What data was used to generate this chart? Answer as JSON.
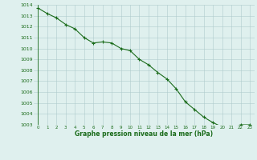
{
  "x": [
    0,
    1,
    2,
    3,
    4,
    5,
    6,
    7,
    8,
    9,
    10,
    11,
    12,
    13,
    14,
    15,
    16,
    17,
    18,
    19,
    20,
    21,
    22,
    23
  ],
  "y": [
    1013.7,
    1013.2,
    1012.8,
    1012.2,
    1011.8,
    1011.0,
    1010.5,
    1010.6,
    1010.5,
    1010.0,
    1009.8,
    1009.0,
    1008.5,
    1007.8,
    1007.2,
    1006.3,
    1005.1,
    1004.4,
    1003.7,
    1003.2,
    1002.8,
    1002.8,
    1003.0,
    1003.0
  ],
  "ylim": [
    1003,
    1014
  ],
  "xlim": [
    -0.5,
    23.5
  ],
  "yticks": [
    1003,
    1004,
    1005,
    1006,
    1007,
    1008,
    1009,
    1010,
    1011,
    1012,
    1013,
    1014
  ],
  "xticks": [
    0,
    1,
    2,
    3,
    4,
    5,
    6,
    7,
    8,
    9,
    10,
    11,
    12,
    13,
    14,
    15,
    16,
    17,
    18,
    19,
    20,
    21,
    22,
    23
  ],
  "line_color": "#1a6b1a",
  "marker_color": "#1a6b1a",
  "bg_plot": "#dff0ee",
  "bg_fig": "#dff0ee",
  "grid_color": "#b0cccc",
  "xlabel": "Graphe pression niveau de la mer (hPa)",
  "xlabel_color": "#1a6b1a",
  "tick_color": "#1a6b1a",
  "marker": "+",
  "markersize": 3.5,
  "linewidth": 0.8
}
